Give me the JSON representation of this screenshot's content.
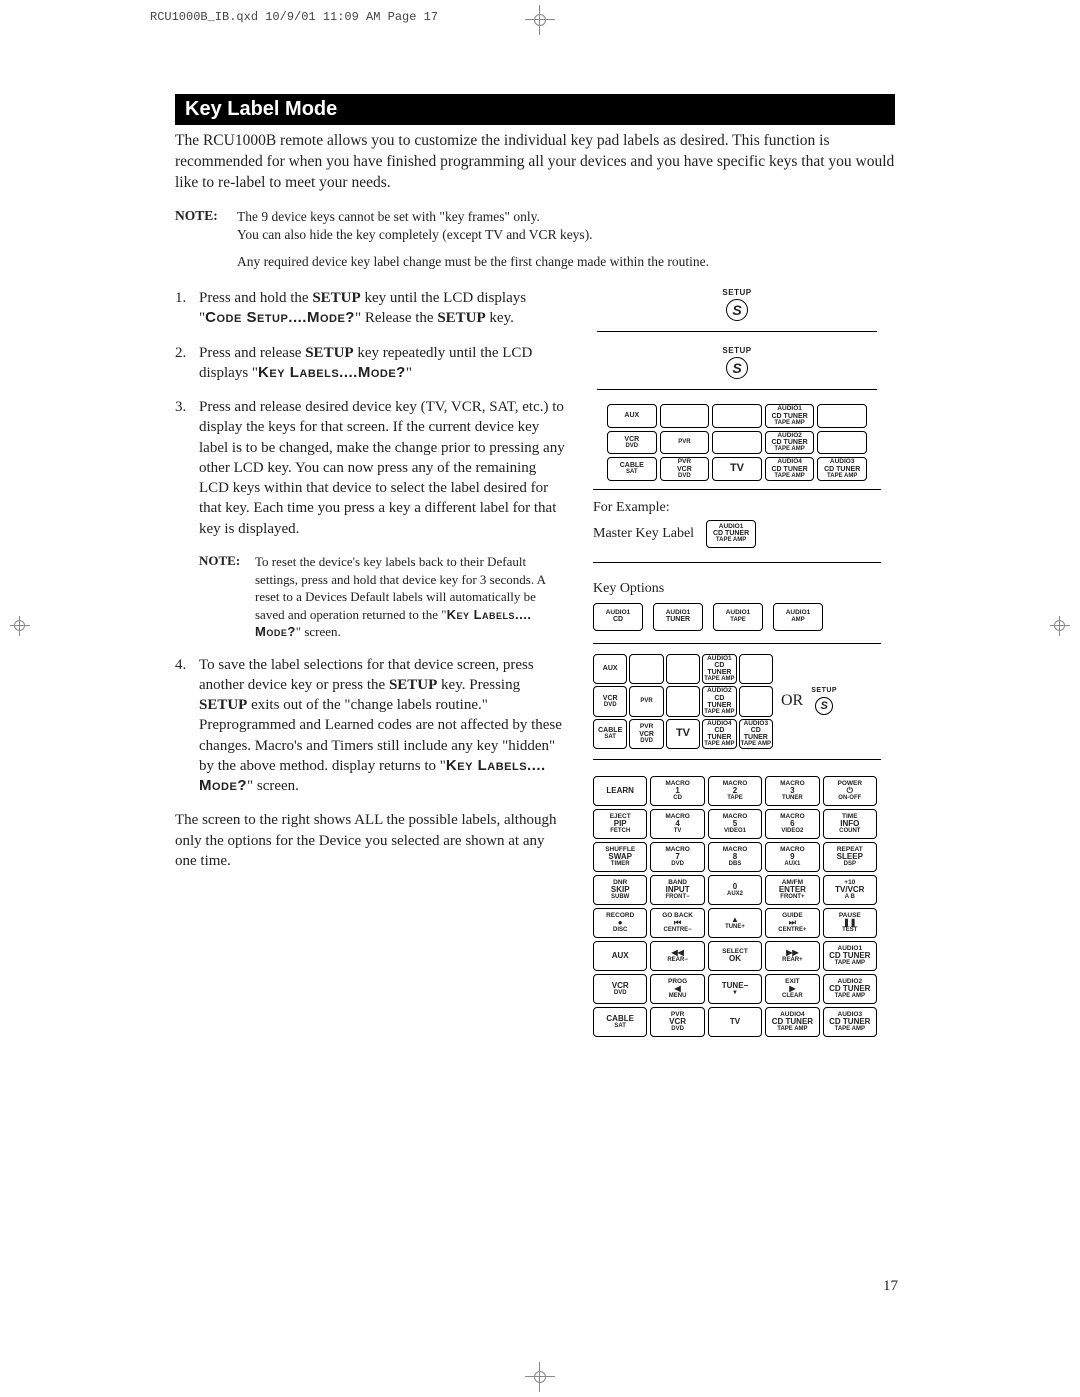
{
  "header_meta": "RCU1000B_IB.qxd   10/9/01   11:09 AM   Page 17",
  "title": "Key Label Mode",
  "intro": "The RCU1000B remote allows you to customize the individual key pad labels as desired. This function is recommended for when you have finished programming all your devices and you have specific keys that you would like to re-label to meet your needs.",
  "note_label": "NOTE:",
  "note1_line1": "The 9 device keys cannot be set with \"key frames\" only.",
  "note1_line2": "You can also hide the key completely (except TV and VCR keys).",
  "any_required": "Any required device key label change must be the first change made within the routine.",
  "steps": {
    "s1a": "Press and hold the ",
    "s1_setup": "SETUP",
    "s1b": " key until the LCD displays \"",
    "s1_lcd": "Code Setup....Mode?",
    "s1c": "\" Release the ",
    "s1d": " key.",
    "s2a": "Press and release ",
    "s2b": " key repeatedly until the LCD displays \"",
    "s2_lcd": "Key Labels....Mode?",
    "s2c": "\"",
    "s3": "Press and release desired device key (TV, VCR, SAT, etc.) to display the keys for that screen. If the current device key label is to be changed, make the change prior to pressing any other LCD key.  You can now press any of the remaining LCD keys within that device to select the label desired for that key. Each time you press a key a different label for that key is displayed.",
    "inner_note": "To reset the device's key labels back to their Default settings, press and hold that device key for 3 seconds. A reset to a Devices Default labels will automatically be saved and operation returned to the \"",
    "inner_note_lcd": "Key Labels.... Mode?",
    "inner_note_end": "\" screen.",
    "s4a": "To save the label selections for that device screen, press another device key or press the ",
    "s4b": " key. Pressing ",
    "s4c": " exits out of the \"change labels routine.\" Preprogrammed and Learned codes are not affected by these changes. Macro's and Timers still include any key \"hidden\" by the above method. display returns to \"",
    "s4_lcd": "Key Labels.... Mode?",
    "s4d": "\" screen."
  },
  "closing": "The screen to the right shows ALL the possible labels, although only the options for the Device you selected are shown at any one time.",
  "page_num": "17",
  "setup_label": "SETUP",
  "circle_s": "S",
  "for_example": "For Example:",
  "master_key_label": "Master Key Label",
  "key_options": "Key Options",
  "or_text": "OR",
  "cluster": [
    [
      "",
      "AUX",
      ""
    ],
    [
      "",
      "",
      ""
    ],
    [
      "",
      "",
      ""
    ],
    [
      "AUDIO1",
      "CD TUNER",
      "TAPE AMP"
    ],
    [
      "",
      "",
      ""
    ],
    [
      "",
      "VCR",
      "DVD"
    ],
    [
      "",
      "",
      "PVR"
    ],
    [
      "",
      "",
      ""
    ],
    [
      "AUDIO2",
      "CD TUNER",
      "TAPE AMP"
    ],
    [
      "",
      "",
      ""
    ],
    [
      "",
      "CABLE",
      "SAT"
    ],
    [
      "PVR",
      "VCR",
      "DVD"
    ],
    [
      "",
      "TV",
      ""
    ],
    [
      "AUDIO4",
      "CD TUNER",
      "TAPE AMP"
    ],
    [
      "AUDIO3",
      "CD TUNER",
      "TAPE AMP"
    ]
  ],
  "master_key": [
    "AUDIO1",
    "CD TUNER",
    "TAPE AMP"
  ],
  "options": [
    [
      "AUDIO1",
      "CD",
      ""
    ],
    [
      "AUDIO1",
      "TUNER",
      ""
    ],
    [
      "AUDIO1",
      "",
      "TAPE"
    ],
    [
      "AUDIO1",
      "",
      "AMP"
    ]
  ],
  "full_keys": [
    [
      "",
      "LEARN",
      ""
    ],
    [
      "MACRO",
      "1",
      "CD"
    ],
    [
      "MACRO",
      "2",
      "TAPE"
    ],
    [
      "MACRO",
      "3",
      "TUNER"
    ],
    [
      "POWER",
      "⏻",
      "ON-OFF"
    ],
    [
      "",
      "",
      ""
    ],
    [
      "EJECT",
      "PIP",
      "FETCH"
    ],
    [
      "MACRO",
      "4",
      "TV"
    ],
    [
      "MACRO",
      "5",
      "VIDEO1"
    ],
    [
      "MACRO",
      "6",
      "VIDEO2"
    ],
    [
      "TIME",
      "INFO",
      "COUNT"
    ],
    [
      "",
      "",
      ""
    ],
    [
      "SHUFFLE",
      "SWAP",
      "TIMER"
    ],
    [
      "MACRO",
      "7",
      "DVD"
    ],
    [
      "MACRO",
      "8",
      "DBS"
    ],
    [
      "MACRO",
      "9",
      "AUX1"
    ],
    [
      "REPEAT",
      "SLEEP",
      "DSP"
    ],
    [
      "",
      "",
      ""
    ],
    [
      "DNR",
      "SKIP",
      "SUBW"
    ],
    [
      "BAND",
      "INPUT",
      "FRONT−"
    ],
    [
      "",
      "0",
      "AUX2"
    ],
    [
      "AM/FM",
      "ENTER",
      "FRONT+"
    ],
    [
      "+10",
      "TV/VCR",
      "A B"
    ],
    [
      "",
      "",
      ""
    ],
    [
      "RECORD",
      "●",
      "DISC"
    ],
    [
      "GO BACK",
      "⏮",
      "CENTRE−"
    ],
    [
      "",
      "▲",
      "TUNE+"
    ],
    [
      "GUIDE",
      "⏭",
      "CENTRE+"
    ],
    [
      "PAUSE",
      "❚❚",
      "TEST"
    ],
    [
      "",
      "",
      ""
    ],
    [
      "",
      "AUX",
      ""
    ],
    [
      "",
      "◀◀",
      "REAR−"
    ],
    [
      "SELECT",
      "OK",
      ""
    ],
    [
      "",
      "▶▶",
      "REAR+"
    ],
    [
      "AUDIO1",
      "CD TUNER",
      "TAPE AMP"
    ],
    [
      "",
      "",
      ""
    ],
    [
      "",
      "VCR",
      "DVD"
    ],
    [
      "PROG",
      "◀",
      "MENU"
    ],
    [
      "",
      "TUNE−",
      "▼"
    ],
    [
      "EXIT",
      "▶",
      "CLEAR"
    ],
    [
      "AUDIO2",
      "CD TUNER",
      "TAPE AMP"
    ],
    [
      "",
      "",
      "PVR"
    ],
    [
      "",
      "CABLE",
      "SAT"
    ],
    [
      "PVR",
      "VCR",
      "DVD"
    ],
    [
      "",
      "TV",
      ""
    ],
    [
      "AUDIO4",
      "CD TUNER",
      "TAPE AMP"
    ],
    [
      "AUDIO3",
      "CD TUNER",
      "TAPE AMP"
    ],
    [
      "",
      "",
      ""
    ]
  ],
  "colors": {
    "title_bg": "#000000",
    "title_fg": "#ffffff",
    "text": "#222222"
  }
}
